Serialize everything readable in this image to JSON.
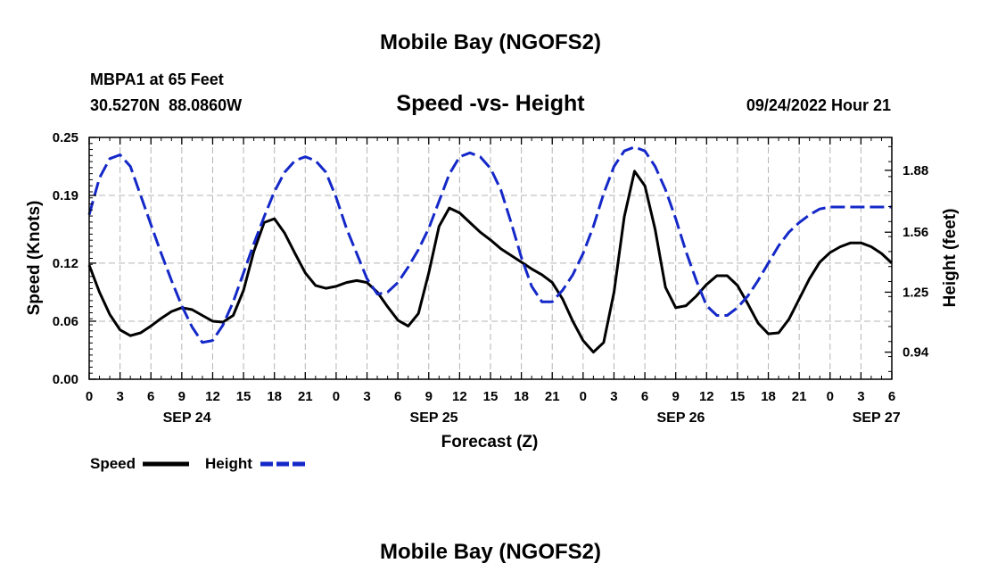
{
  "page": {
    "title": "Mobile Bay (NGOFS2)",
    "station": "MBPA1 at 65 Feet",
    "coords": "30.5270N  88.0860W",
    "subtitle": "Speed -vs- Height",
    "datetime": "09/24/2022 Hour 21",
    "bottom_title": "Mobile Bay (NGOFS2)"
  },
  "chart_data": {
    "type": "line",
    "title": "Speed -vs- Height",
    "xlabel": "Forecast (Z)",
    "ylabel": "Speed (Knots)",
    "y2label": "Height (feet)",
    "xlim": [
      0,
      78
    ],
    "ylim": [
      0,
      0.25
    ],
    "y2lim": [
      0.8,
      2.05
    ],
    "x_ticks": [
      0,
      3,
      6,
      9,
      12,
      15,
      18,
      21,
      24,
      27,
      30,
      33,
      36,
      39,
      42,
      45,
      48,
      51,
      54,
      57,
      60,
      63,
      66,
      69,
      72,
      75,
      78
    ],
    "x_tick_labels": [
      "0",
      "3",
      "6",
      "9",
      "12",
      "15",
      "18",
      "21",
      "0",
      "3",
      "6",
      "9",
      "12",
      "15",
      "18",
      "21",
      "0",
      "3",
      "6",
      "9",
      "12",
      "15",
      "18",
      "21",
      "0",
      "3",
      "6"
    ],
    "day_labels": [
      {
        "x": 9.5,
        "label": "SEP 24"
      },
      {
        "x": 33.5,
        "label": "SEP 25"
      },
      {
        "x": 57.5,
        "label": "SEP 26"
      },
      {
        "x": 76.5,
        "label": "SEP 27"
      }
    ],
    "y_ticks": [
      0,
      0.06,
      0.12,
      0.19,
      0.25
    ],
    "y_tick_labels": [
      "0.00",
      "0.06",
      "0.12",
      "0.19",
      "0.25"
    ],
    "y2_ticks": [
      0.94,
      1.25,
      1.56,
      1.88
    ],
    "y2_tick_labels": [
      "0.94",
      "1.25",
      "1.56",
      "1.88"
    ],
    "grid": true,
    "legend": [
      "Speed",
      "Height"
    ],
    "legend_position": "bottom-left",
    "series": [
      {
        "name": "Speed",
        "axis": "left",
        "color": "#000000",
        "dash": "solid",
        "x": [
          0,
          1,
          2,
          3,
          4,
          5,
          6,
          7,
          8,
          9,
          10,
          11,
          12,
          13,
          14,
          15,
          16,
          17,
          18,
          19,
          20,
          21,
          22,
          23,
          24,
          25,
          26,
          27,
          28,
          29,
          30,
          31,
          32,
          33,
          34,
          35,
          36,
          37,
          38,
          39,
          40,
          41,
          42,
          43,
          44,
          45,
          46,
          47,
          48,
          49,
          50,
          51,
          52,
          53,
          54,
          55,
          56,
          57,
          58,
          59,
          60,
          61,
          62,
          63,
          64,
          65,
          66,
          67,
          68,
          69,
          70,
          71,
          72,
          73,
          74,
          75,
          76,
          77,
          78
        ],
        "values": [
          0.118,
          0.09,
          0.067,
          0.051,
          0.045,
          0.048,
          0.055,
          0.063,
          0.07,
          0.074,
          0.072,
          0.066,
          0.06,
          0.059,
          0.066,
          0.092,
          0.132,
          0.162,
          0.166,
          0.151,
          0.13,
          0.11,
          0.097,
          0.094,
          0.096,
          0.1,
          0.102,
          0.1,
          0.09,
          0.075,
          0.061,
          0.055,
          0.068,
          0.11,
          0.158,
          0.177,
          0.172,
          0.162,
          0.152,
          0.144,
          0.135,
          0.128,
          0.121,
          0.114,
          0.108,
          0.1,
          0.083,
          0.06,
          0.04,
          0.028,
          0.038,
          0.09,
          0.168,
          0.215,
          0.2,
          0.155,
          0.095,
          0.074,
          0.076,
          0.086,
          0.098,
          0.107,
          0.107,
          0.097,
          0.078,
          0.058,
          0.047,
          0.048,
          0.062,
          0.083,
          0.104,
          0.121,
          0.131,
          0.137,
          0.141,
          0.141,
          0.137,
          0.13,
          0.12
        ]
      },
      {
        "name": "Height",
        "axis": "right",
        "color": "#1428c8",
        "dash": "dashed",
        "x": [
          0,
          1,
          2,
          3,
          4,
          5,
          6,
          7,
          8,
          9,
          10,
          11,
          12,
          13,
          14,
          15,
          16,
          17,
          18,
          19,
          20,
          21,
          22,
          23,
          24,
          25,
          26,
          27,
          28,
          29,
          30,
          31,
          32,
          33,
          34,
          35,
          36,
          37,
          38,
          39,
          40,
          41,
          42,
          43,
          44,
          45,
          46,
          47,
          48,
          49,
          50,
          51,
          52,
          53,
          54,
          55,
          56,
          57,
          58,
          59,
          60,
          61,
          62,
          63,
          64,
          65,
          66,
          67,
          68,
          69,
          70,
          71,
          72,
          73,
          74,
          75,
          76,
          77,
          78
        ],
        "values": [
          1.65,
          1.84,
          1.94,
          1.96,
          1.9,
          1.75,
          1.6,
          1.45,
          1.31,
          1.18,
          1.07,
          0.99,
          1.0,
          1.08,
          1.2,
          1.35,
          1.5,
          1.64,
          1.77,
          1.87,
          1.93,
          1.95,
          1.93,
          1.87,
          1.74,
          1.58,
          1.45,
          1.32,
          1.24,
          1.25,
          1.3,
          1.38,
          1.47,
          1.58,
          1.72,
          1.86,
          1.95,
          1.97,
          1.95,
          1.89,
          1.78,
          1.61,
          1.43,
          1.28,
          1.2,
          1.2,
          1.26,
          1.34,
          1.45,
          1.59,
          1.76,
          1.9,
          1.98,
          2.0,
          1.98,
          1.9,
          1.78,
          1.63,
          1.46,
          1.31,
          1.18,
          1.13,
          1.13,
          1.17,
          1.23,
          1.31,
          1.4,
          1.49,
          1.56,
          1.61,
          1.65,
          1.68,
          1.69,
          1.69,
          1.69,
          1.69,
          1.69,
          1.69,
          1.69
        ]
      }
    ]
  }
}
